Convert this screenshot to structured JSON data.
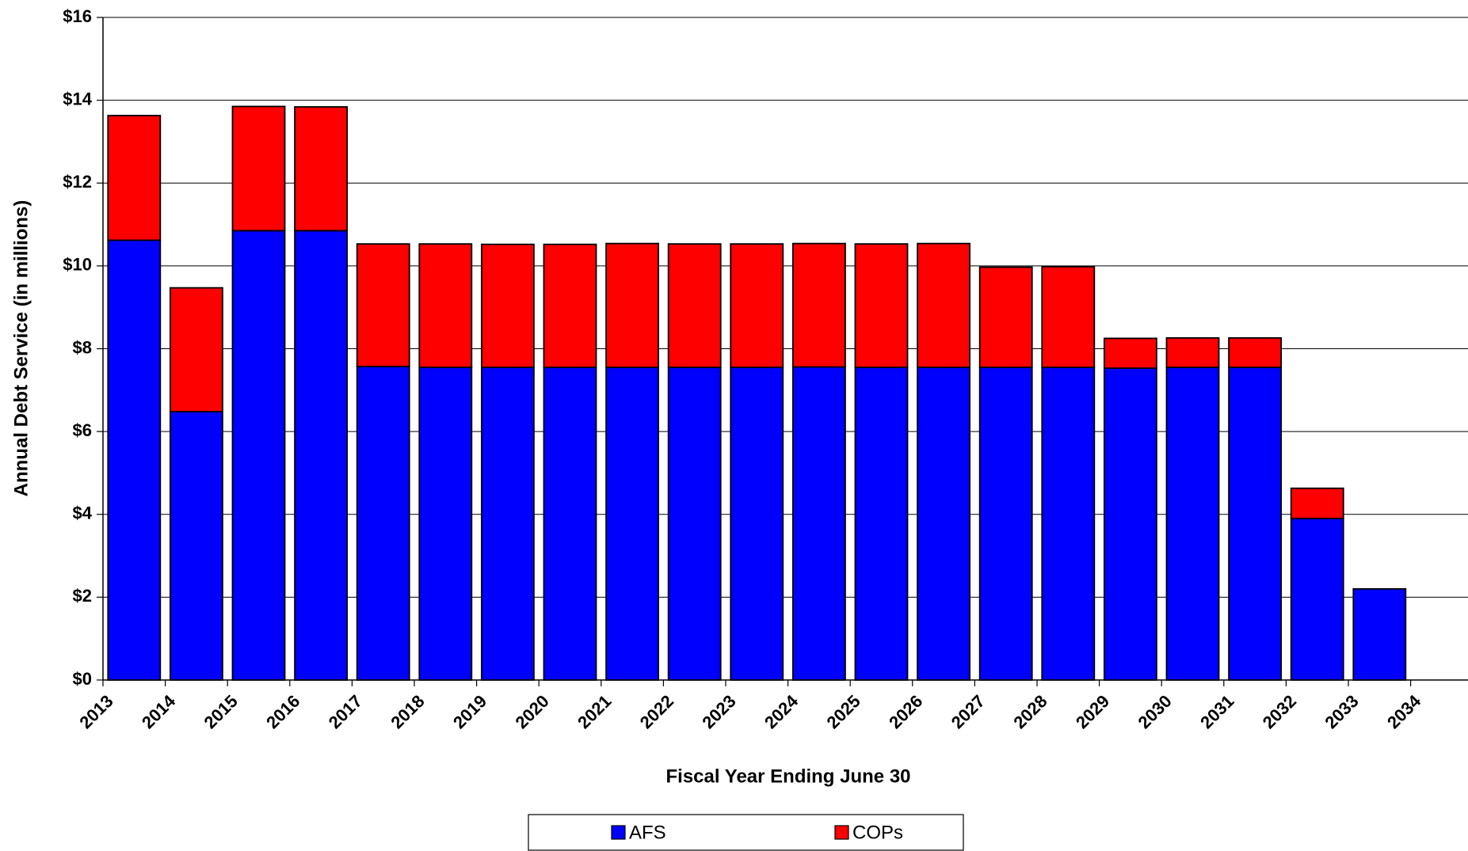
{
  "chart_data": {
    "type": "stacked-bar",
    "y_label": "Annual Debt Service (in millions)",
    "x_label": "Fiscal Year Ending June 30",
    "categories": [
      "2013",
      "2014",
      "2015",
      "2016",
      "2017",
      "2018",
      "2019",
      "2020",
      "2021",
      "2022",
      "2023",
      "2024",
      "2025",
      "2026",
      "2027",
      "2028",
      "2029",
      "2030",
      "2031",
      "2032",
      "2033",
      "2034"
    ],
    "series": [
      {
        "name": "AFS",
        "color": "#0000ff",
        "values": [
          10.62,
          6.48,
          10.85,
          10.85,
          7.57,
          7.55,
          7.55,
          7.55,
          7.55,
          7.55,
          7.55,
          7.56,
          7.55,
          7.55,
          7.55,
          7.55,
          7.53,
          7.55,
          7.55,
          3.9,
          2.2,
          null
        ]
      },
      {
        "name": "COPs",
        "color": "#ff0000",
        "values": [
          3.01,
          2.99,
          3.0,
          2.99,
          2.96,
          2.98,
          2.97,
          2.97,
          2.99,
          2.98,
          2.98,
          2.98,
          2.98,
          2.99,
          2.42,
          2.43,
          0.72,
          0.71,
          0.71,
          0.73,
          0,
          null
        ]
      }
    ],
    "ylim": [
      0,
      16
    ],
    "yticks": [
      {
        "value": 0,
        "label": "$0"
      },
      {
        "value": 2,
        "label": "$2"
      },
      {
        "value": 4,
        "label": "$4"
      },
      {
        "value": 6,
        "label": "$6"
      },
      {
        "value": 8,
        "label": "$8"
      },
      {
        "value": 10,
        "label": "$10"
      },
      {
        "value": 12,
        "label": "$12"
      },
      {
        "value": 14,
        "label": "$14"
      },
      {
        "value": 16,
        "label": "$16"
      }
    ],
    "grid": true
  }
}
